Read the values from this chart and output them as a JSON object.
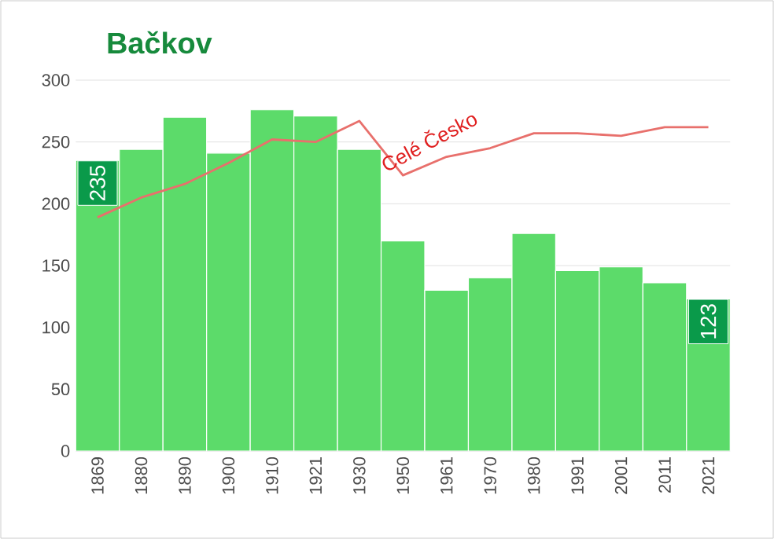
{
  "chart_data": {
    "type": "bar",
    "title": "Bačkov",
    "categories": [
      "1869",
      "1880",
      "1890",
      "1900",
      "1910",
      "1921",
      "1930",
      "1950",
      "1961",
      "1970",
      "1980",
      "1991",
      "2001",
      "2011",
      "2021"
    ],
    "series": [
      {
        "color": "#5cdb6a",
        "values": [
          235,
          244,
          270,
          241,
          276,
          271,
          244,
          170,
          130,
          140,
          176,
          146,
          149,
          136,
          123
        ],
        "value_labels": [
          "235",
          null,
          null,
          null,
          null,
          null,
          null,
          null,
          null,
          null,
          null,
          null,
          null,
          null,
          "123"
        ]
      },
      {
        "type": "line",
        "name": "Celé Česko",
        "color": "#e8706c",
        "values": [
          189,
          205,
          216,
          233,
          252,
          250,
          267,
          223,
          238,
          245,
          257,
          257,
          255,
          262,
          262
        ]
      }
    ],
    "ylim": [
      0,
      300
    ],
    "yticks": [
      0,
      50,
      100,
      150,
      200,
      250,
      300
    ],
    "grid": "y"
  }
}
